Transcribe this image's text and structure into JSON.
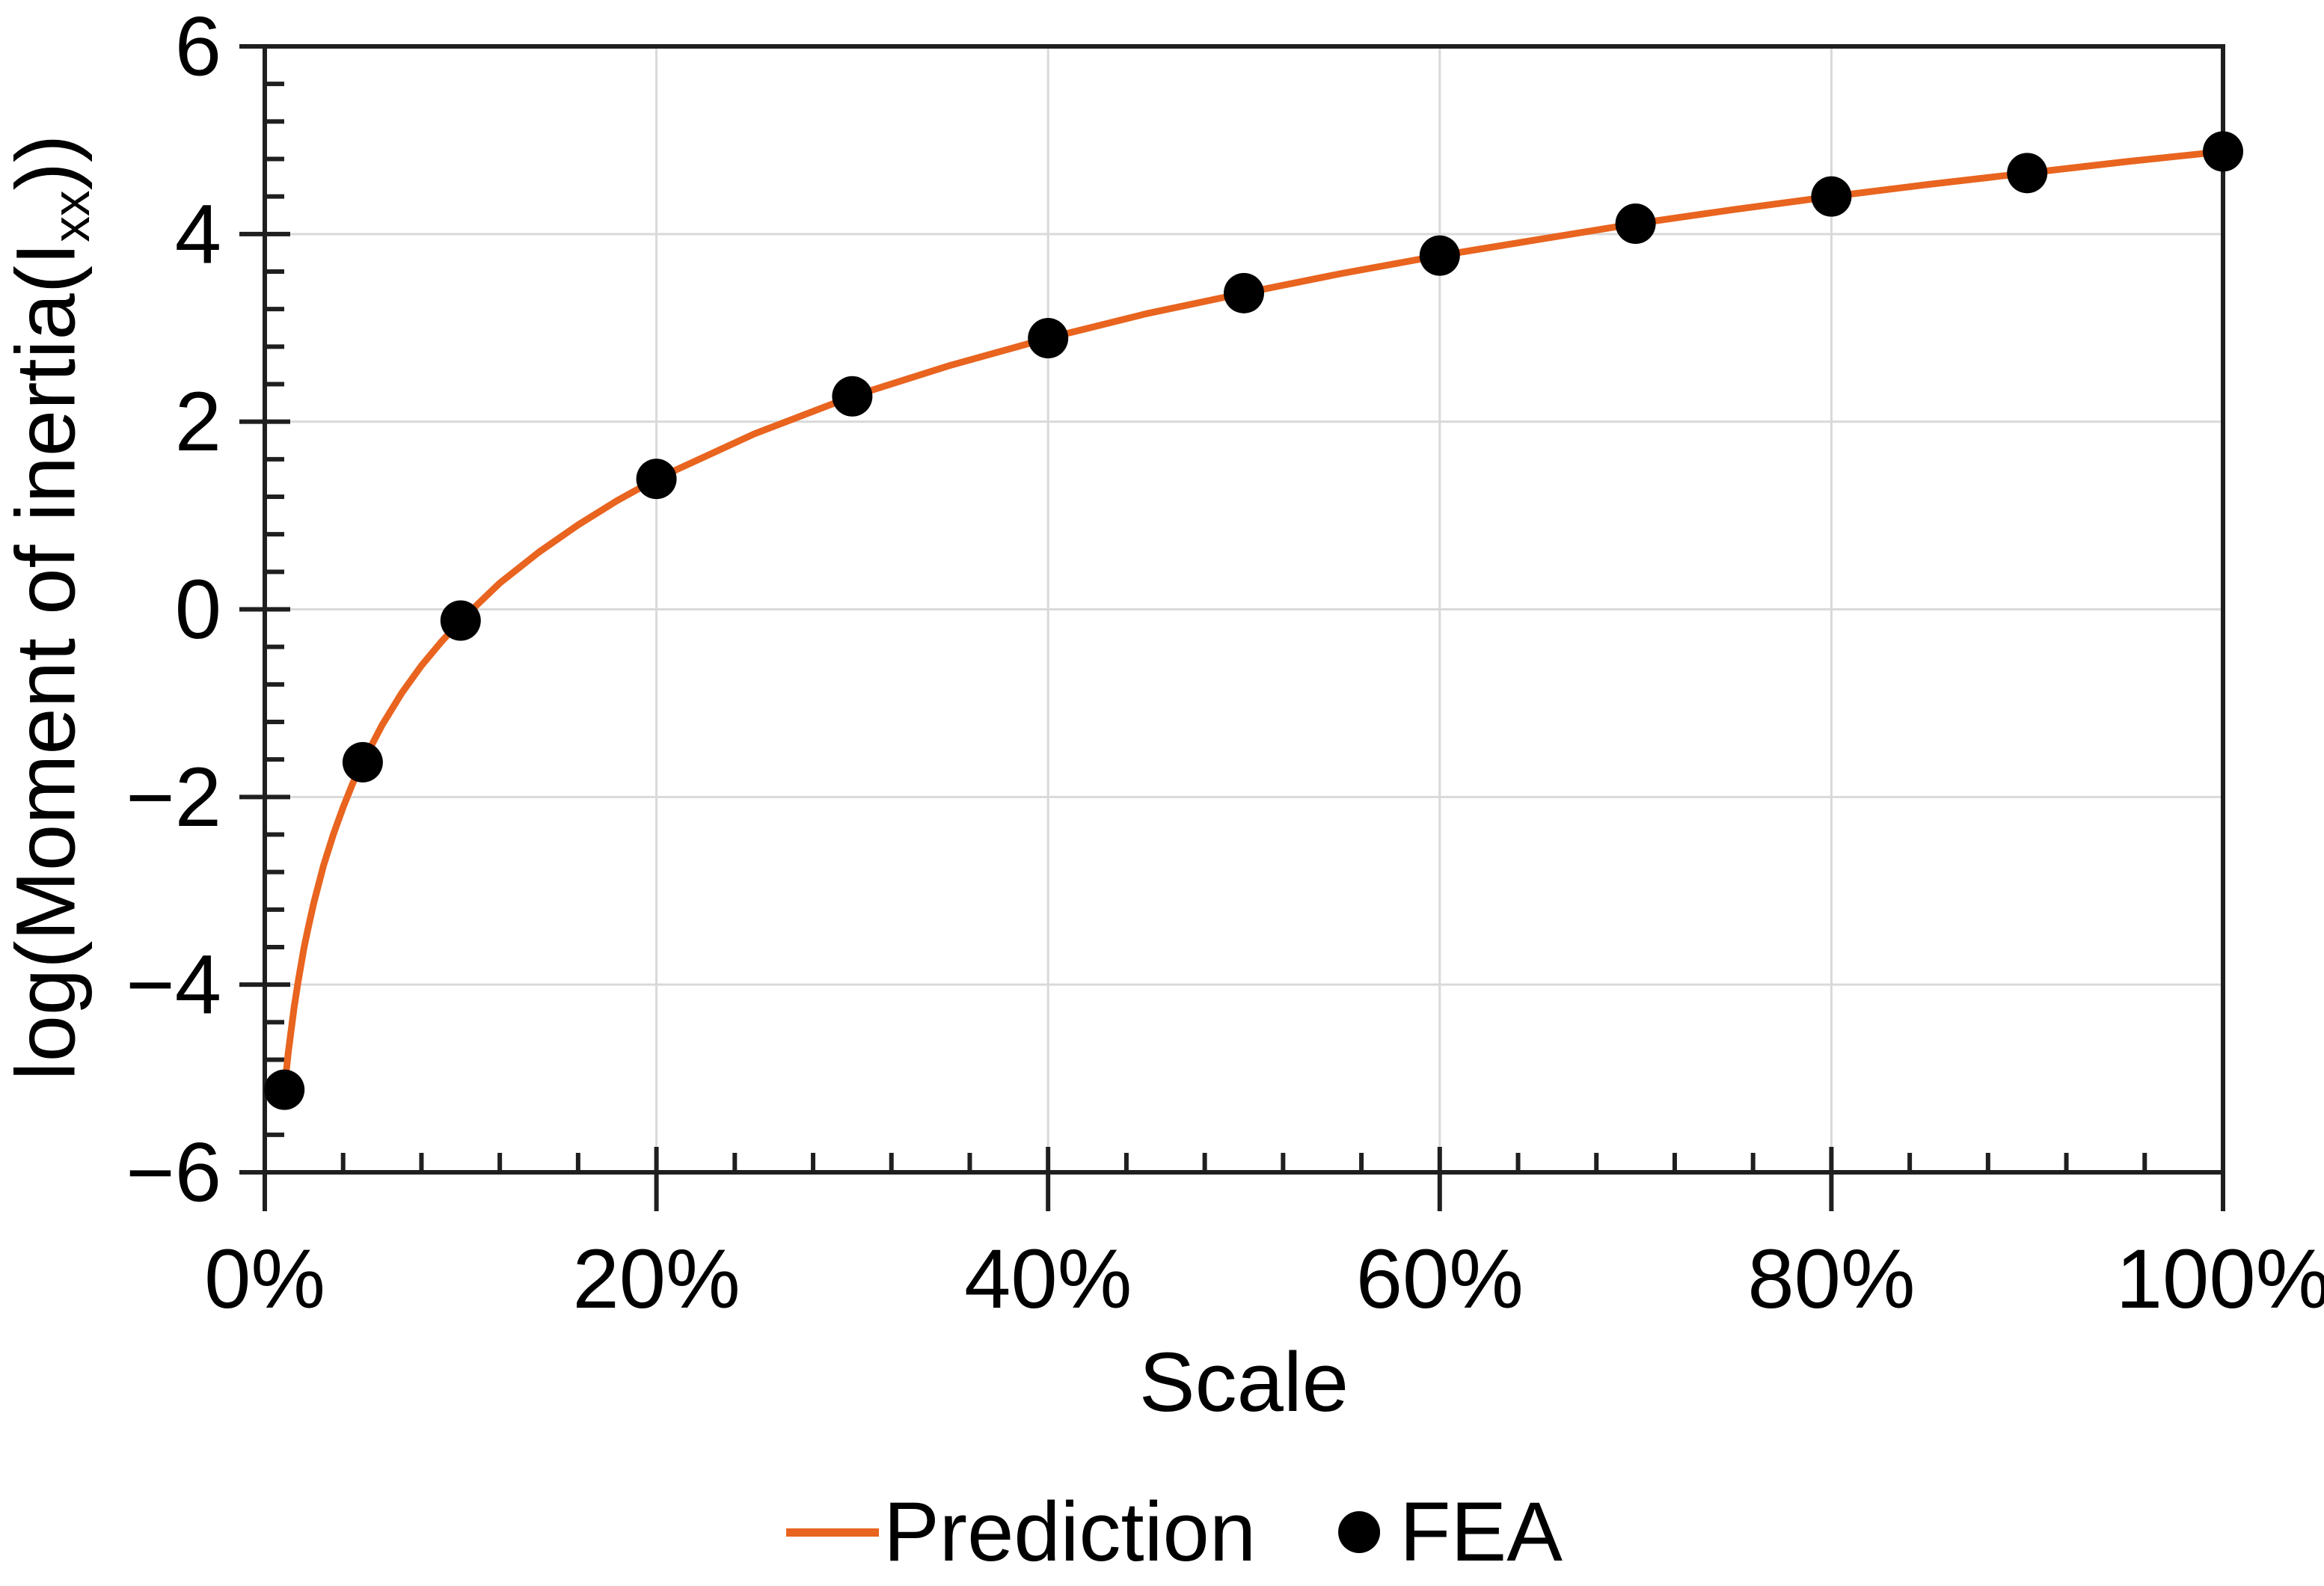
{
  "figure": {
    "background": "#ffffff"
  },
  "chart_data": {
    "type": "line",
    "title": "",
    "xlabel": "Scale",
    "ylabel": "log(Moment of inertia(Ixx))",
    "ylabel_parts": {
      "prefix": "log(Moment of inertia(I",
      "subscript": "xx",
      "suffix": "))"
    },
    "xlim": [
      0,
      100
    ],
    "ylim": [
      -6,
      6
    ],
    "x_tick_values": [
      0,
      20,
      40,
      60,
      80,
      100
    ],
    "x_tick_labels": [
      "0%",
      "20%",
      "40%",
      "60%",
      "80%",
      "100%"
    ],
    "y_tick_values": [
      6,
      4,
      2,
      0,
      -2,
      -4,
      -6
    ],
    "y_tick_labels": [
      "6",
      "4",
      "2",
      "0",
      "−2",
      "−4",
      "−6"
    ],
    "x_minor_step": 4,
    "y_minor_step": 0.4,
    "grid": {
      "horizontal": true,
      "vertical": true,
      "color": "#d9d9d9"
    },
    "axis_color": "#1f1f1f",
    "legend_position": "bottom-center",
    "series": [
      {
        "name": "Prediction",
        "kind": "line",
        "color": "#e8641f",
        "x": [
          1,
          1.2,
          1.5,
          1.7,
          2,
          2.2,
          2.5,
          3,
          3.5,
          4,
          4.5,
          5,
          6,
          7,
          8,
          9,
          10,
          12,
          14,
          16,
          18,
          20,
          25,
          30,
          35,
          40,
          45,
          50,
          55,
          60,
          65,
          70,
          75,
          80,
          85,
          90,
          95,
          100
        ],
        "y": [
          -5.12,
          -4.72,
          -4.24,
          -3.97,
          -3.61,
          -3.41,
          -3.13,
          -2.73,
          -2.4,
          -2.11,
          -1.85,
          -1.63,
          -1.23,
          -0.89,
          -0.6,
          -0.35,
          -0.12,
          0.28,
          0.61,
          0.9,
          1.16,
          1.39,
          1.87,
          2.27,
          2.6,
          2.89,
          3.15,
          3.37,
          3.58,
          3.77,
          3.94,
          4.11,
          4.26,
          4.4,
          4.53,
          4.65,
          4.77,
          4.88
        ]
      },
      {
        "name": "FEA",
        "kind": "scatter",
        "color": "#000000",
        "x": [
          1,
          5,
          10,
          20,
          30,
          40,
          50,
          60,
          70,
          80,
          90,
          100
        ],
        "y": [
          -5.12,
          -1.63,
          -0.12,
          1.39,
          2.27,
          2.89,
          3.37,
          3.77,
          4.11,
          4.4,
          4.65,
          4.88
        ]
      }
    ]
  },
  "legend": {
    "items": [
      {
        "label": "Prediction",
        "swatch": "line",
        "color": "#e8641f"
      },
      {
        "label": "FEA",
        "swatch": "dot",
        "color": "#000000"
      }
    ]
  }
}
